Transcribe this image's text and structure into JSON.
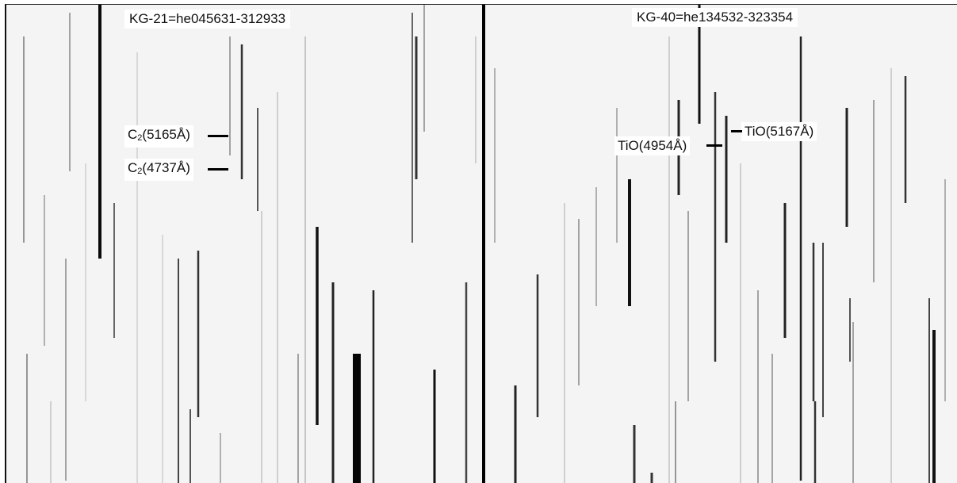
{
  "left": {
    "title": "KG-21=he045631-312933",
    "annotations": [
      {
        "species": "C",
        "sub": "2",
        "wavelength": "(5165Å)"
      },
      {
        "species": "C",
        "sub": "2",
        "wavelength": "(4737Å)"
      }
    ]
  },
  "right": {
    "title": "KG-40=he134532-323354",
    "annotations": [
      {
        "species": "TiO",
        "wavelength": "(4954Å)"
      },
      {
        "species": "TiO",
        "wavelength": "(5167Å)"
      }
    ]
  }
}
